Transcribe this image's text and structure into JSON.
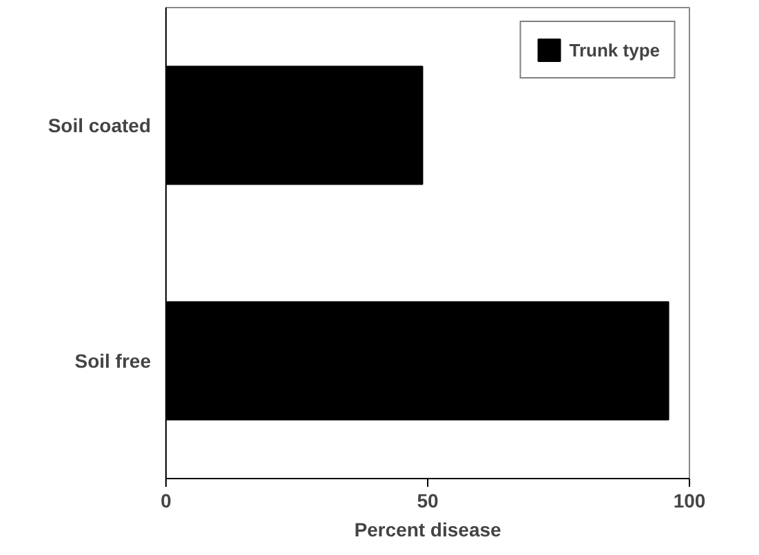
{
  "chart_data": {
    "type": "bar",
    "orientation": "horizontal",
    "xlabel": "Percent disease",
    "categories": [
      "Soil coated",
      "Soil free"
    ],
    "series": [
      {
        "name": "Trunk type",
        "color": "#000000",
        "values": [
          49,
          96
        ]
      }
    ],
    "xlim": [
      0,
      100
    ],
    "xticks": [
      0,
      50,
      100
    ],
    "grid": false,
    "legend": "top right"
  }
}
